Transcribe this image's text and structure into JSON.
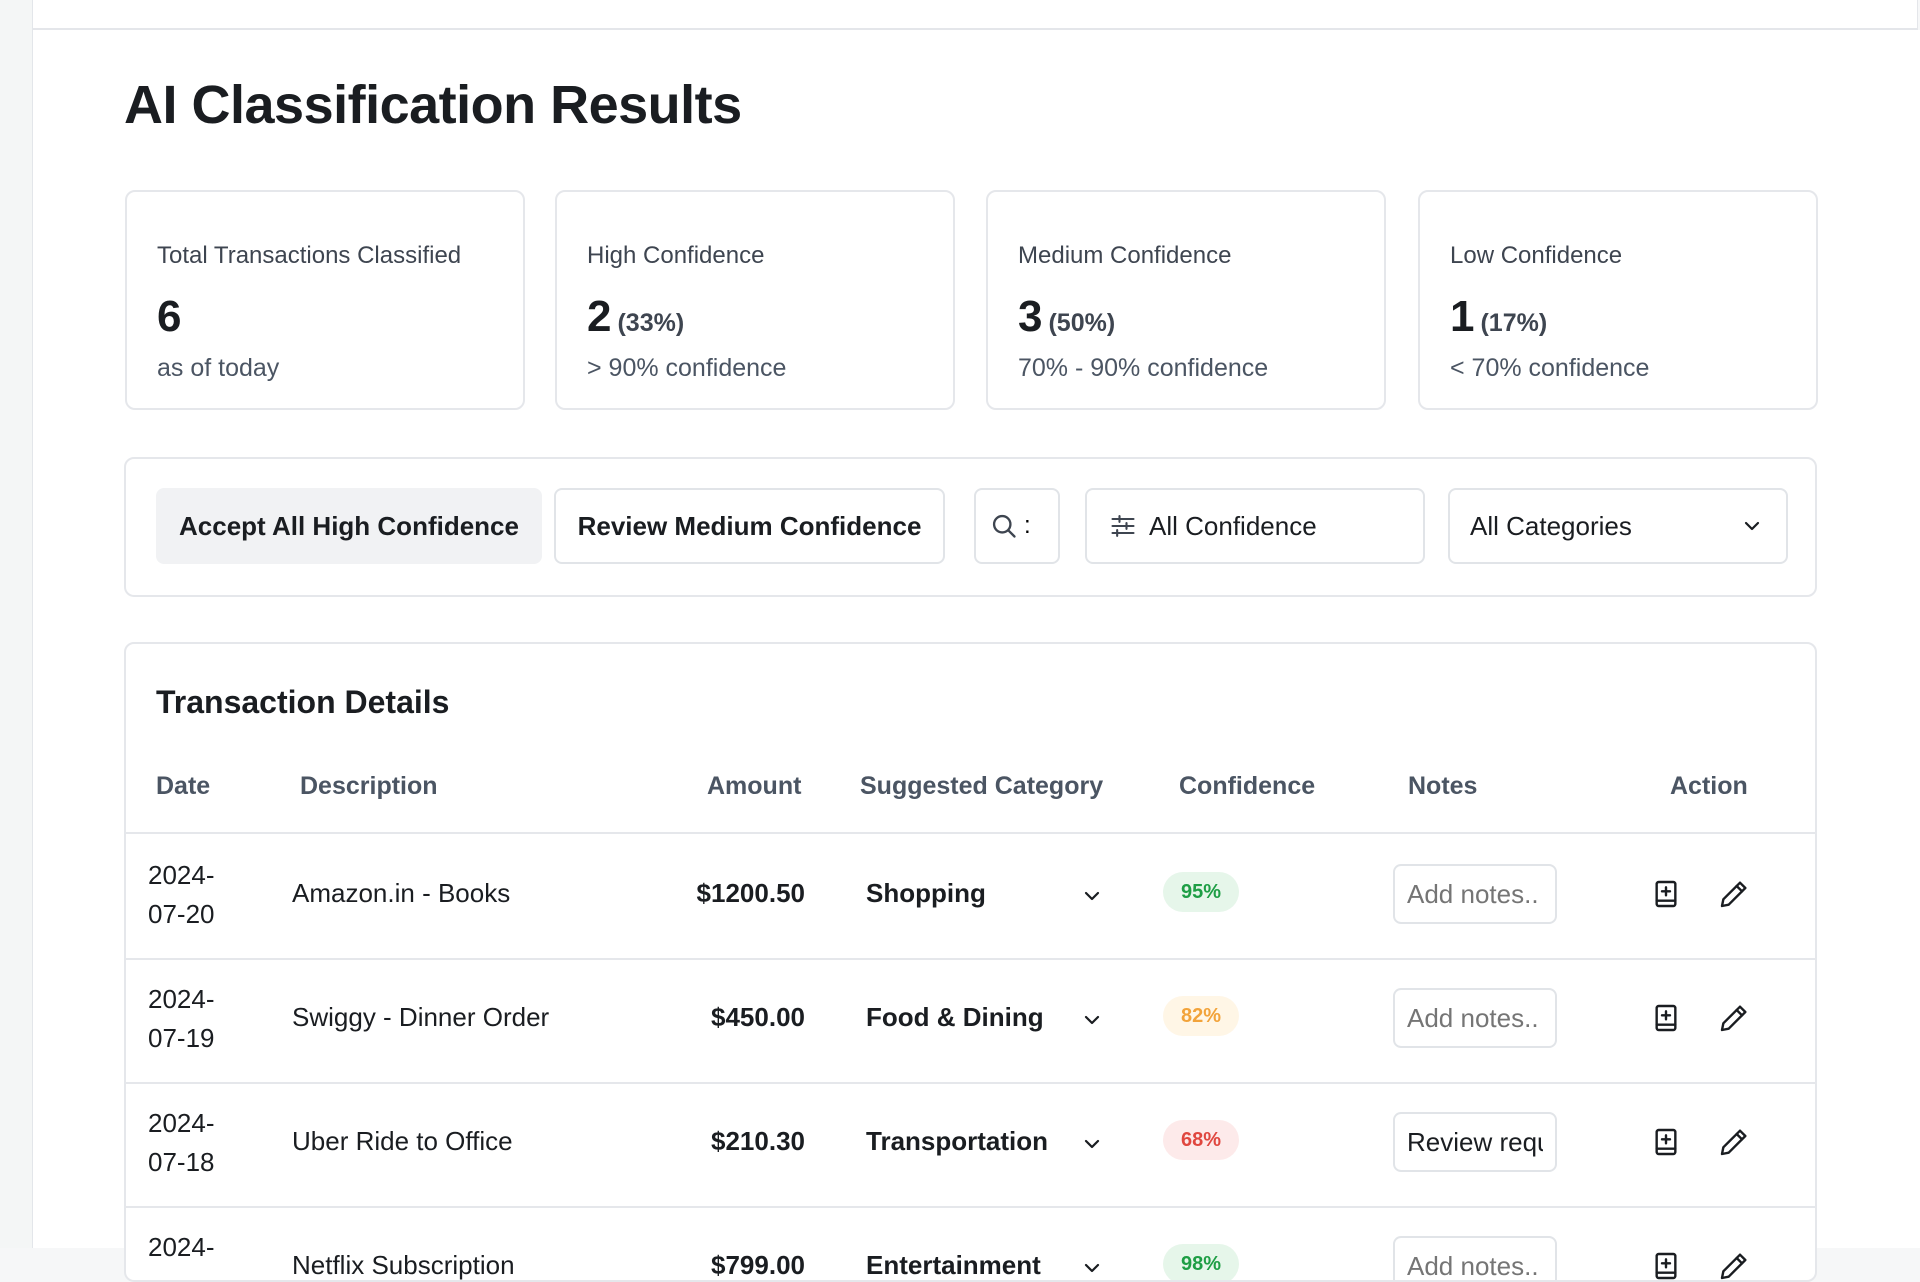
{
  "page": {
    "title": "AI Classification Results"
  },
  "stats": [
    {
      "label": "Total Transactions Classified",
      "value": "6",
      "pct": "",
      "sub": "as of today"
    },
    {
      "label": "High Confidence",
      "value": "2",
      "pct": "(33%)",
      "sub": "> 90% confidence"
    },
    {
      "label": "Medium Confidence",
      "value": "3",
      "pct": "(50%)",
      "sub": "70% - 90% confidence"
    },
    {
      "label": "Low Confidence",
      "value": "1",
      "pct": "(17%)",
      "sub": "< 70% confidence"
    }
  ],
  "toolbar": {
    "accept_label": "Accept All High Confidence",
    "review_label": "Review Medium Confidence",
    "search_value": ":",
    "confidence_filter": "All Confidence",
    "category_filter": "All Categories"
  },
  "table": {
    "title": "Transaction Details",
    "columns": [
      "Date",
      "Description",
      "Amount",
      "Suggested Category",
      "Confidence",
      "Notes",
      "Action"
    ],
    "rows": [
      {
        "date": "2024-07-20",
        "description": "Amazon.in - Books",
        "amount": "$1200.50",
        "category": "Shopping",
        "confidence": "95%",
        "level": "high",
        "notes_value": "",
        "notes_placeholder": "Add notes.."
      },
      {
        "date": "2024-07-19",
        "description": "Swiggy - Dinner Order",
        "amount": "$450.00",
        "category": "Food & Dining",
        "confidence": "82%",
        "level": "medium",
        "notes_value": "",
        "notes_placeholder": "Add notes.."
      },
      {
        "date": "2024-07-18",
        "description": "Uber Ride to Office",
        "amount": "$210.30",
        "category": "Transportation",
        "confidence": "68%",
        "level": "low",
        "notes_value": "Review requ",
        "notes_placeholder": "Add notes.."
      },
      {
        "date": "2024-",
        "description": "Netflix Subscription",
        "amount": "$799.00",
        "category": "Entertainment",
        "confidence": "98%",
        "level": "high",
        "notes_value": "",
        "notes_placeholder": "Add notes.."
      }
    ]
  },
  "colors": {
    "high_bg": "#e6f6ea",
    "high_fg": "#1e9e45",
    "medium_bg": "#fff6e6",
    "medium_fg": "#f2a33a",
    "low_bg": "#fdeaea",
    "low_fg": "#e0473f"
  }
}
